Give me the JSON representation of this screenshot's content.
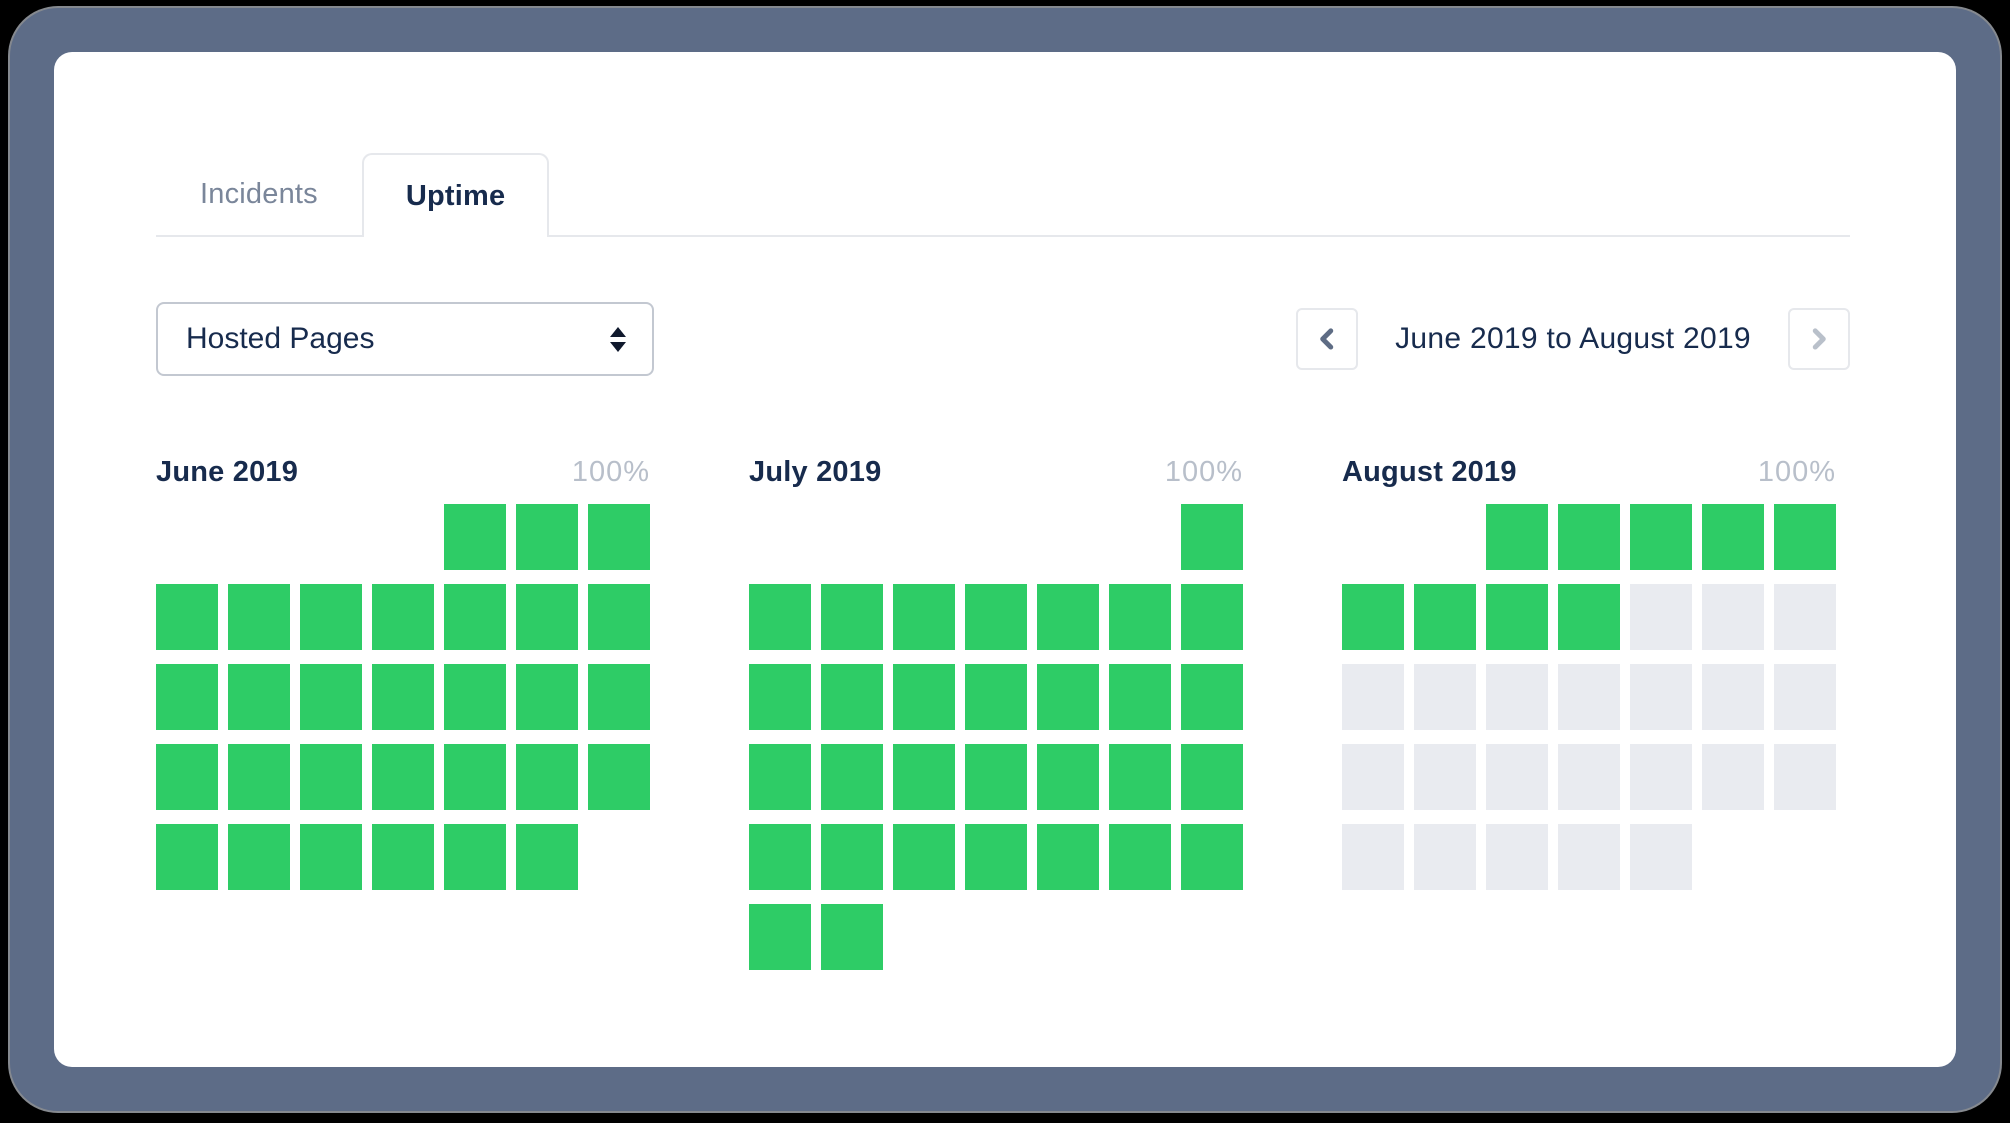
{
  "tabs": {
    "incidents_label": "Incidents",
    "uptime_label": "Uptime",
    "active_tab": "Uptime"
  },
  "filter": {
    "selected_option": "Hosted Pages"
  },
  "pager": {
    "range_label": "June 2019 to August 2019",
    "prev_enabled": true,
    "next_enabled": false
  },
  "months": [
    {
      "name": "June 2019",
      "uptime_label": "100%",
      "leading_empty_cells": 4,
      "operational_days": 30,
      "future_days": 0
    },
    {
      "name": "July 2019",
      "uptime_label": "100%",
      "leading_empty_cells": 6,
      "operational_days": 31,
      "future_days": 0
    },
    {
      "name": "August 2019",
      "uptime_label": "100%",
      "leading_empty_cells": 2,
      "operational_days": 9,
      "future_days": 22
    }
  ],
  "legend": {
    "operational_state": "up",
    "future_state": "future"
  },
  "colors": {
    "operational_green": "#2ecc66",
    "future_gray": "#e9ebf0",
    "frame_slate": "#5d6c87",
    "text_navy": "#172b4d",
    "text_muted": "#7a869a",
    "text_light": "#b8bfca"
  }
}
